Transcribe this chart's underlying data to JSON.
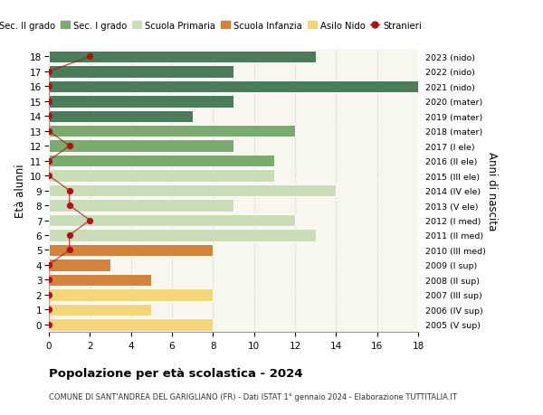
{
  "ages": [
    18,
    17,
    16,
    15,
    14,
    13,
    12,
    11,
    10,
    9,
    8,
    7,
    6,
    5,
    4,
    3,
    2,
    1,
    0
  ],
  "right_labels": [
    "2005 (V sup)",
    "2006 (IV sup)",
    "2007 (III sup)",
    "2008 (II sup)",
    "2009 (I sup)",
    "2010 (III med)",
    "2011 (II med)",
    "2012 (I med)",
    "2013 (V ele)",
    "2014 (IV ele)",
    "2015 (III ele)",
    "2016 (II ele)",
    "2017 (I ele)",
    "2018 (mater)",
    "2019 (mater)",
    "2020 (mater)",
    "2021 (nido)",
    "2022 (nido)",
    "2023 (nido)"
  ],
  "bar_values": [
    13,
    9,
    18,
    9,
    7,
    12,
    9,
    11,
    11,
    14,
    9,
    12,
    13,
    8,
    3,
    5,
    8,
    5,
    8
  ],
  "bar_colors": [
    "#4a7c59",
    "#4a7c59",
    "#4a7c59",
    "#4a7c59",
    "#4a7c59",
    "#7aab6e",
    "#7aab6e",
    "#7aab6e",
    "#c8ddb8",
    "#c8ddb8",
    "#c8ddb8",
    "#c8ddb8",
    "#c8ddb8",
    "#d4833a",
    "#d4833a",
    "#d4833a",
    "#f5d57a",
    "#f5d57a",
    "#f5d57a"
  ],
  "stranieri_values": [
    2,
    0,
    0,
    0,
    0,
    0,
    1,
    0,
    0,
    1,
    1,
    2,
    1,
    1,
    0,
    0,
    0,
    0,
    0
  ],
  "title": "Popolazione per età scolastica - 2024",
  "subtitle": "COMUNE DI SANT'ANDREA DEL GARIGLIANO (FR) - Dati ISTAT 1° gennaio 2024 - Elaborazione TUTTITALIA.IT",
  "ylabel_left": "Età alunni",
  "ylabel_right": "Anni di nascita",
  "xlim": [
    0,
    18
  ],
  "xticks": [
    0,
    2,
    4,
    6,
    8,
    10,
    12,
    14,
    16,
    18
  ],
  "legend_labels": [
    "Sec. II grado",
    "Sec. I grado",
    "Scuola Primaria",
    "Scuola Infanzia",
    "Asilo Nido",
    "Stranieri"
  ],
  "legend_colors": [
    "#4a7c59",
    "#7aab6e",
    "#c8ddb8",
    "#d4833a",
    "#f5d57a",
    "#aa1111"
  ],
  "bar_height": 0.82,
  "background_color": "#ffffff",
  "plot_bg_color": "#f7f7ef",
  "grid_color": "#cccccc"
}
